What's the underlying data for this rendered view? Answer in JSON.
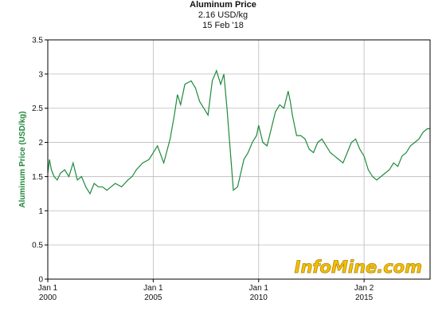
{
  "header": {
    "title": "Aluminum Price",
    "price_line": "2.16 USD/kg",
    "date_line": "15 Feb '18"
  },
  "brand": {
    "watermark": "InfoMine.com"
  },
  "colors": {
    "series": "#1f8a3c",
    "grid": "#bbbbbb",
    "axis": "#000000",
    "watermark_fill": "#f2c200",
    "watermark_stroke": "#b8860b",
    "ylabel": "#1f8a3c"
  },
  "chart_data": {
    "type": "line",
    "title": "Aluminum Price",
    "subtitle": [
      "2.16 USD/kg",
      "15 Feb '18"
    ],
    "xlabel": "",
    "ylabel": "Aluminum Price (USD/kg)",
    "xlim": [
      2000.0,
      2018.13
    ],
    "ylim": [
      0,
      3.5
    ],
    "grid": true,
    "legend": "none",
    "x_ticks": [
      {
        "x": 2000,
        "line1": "Jan 1",
        "line2": "2000"
      },
      {
        "x": 2005,
        "line1": "Jan 1",
        "line2": "2005"
      },
      {
        "x": 2010,
        "line1": "Jan 1",
        "line2": "2010"
      },
      {
        "x": 2015,
        "line1": "Jan 2",
        "line2": "2015"
      }
    ],
    "y_ticks": [
      "0",
      "0.5",
      "1",
      "1.5",
      "2",
      "2.5",
      "3",
      "3.5"
    ],
    "series": [
      {
        "x": [
          2000.0,
          2000.08,
          2000.17,
          2000.3,
          2000.45,
          2000.6,
          2000.8,
          2001.0,
          2001.2,
          2001.4,
          2001.6,
          2001.8,
          2002.0,
          2002.2,
          2002.4,
          2002.6,
          2002.8,
          2003.0,
          2003.2,
          2003.5,
          2003.8,
          2004.0,
          2004.2,
          2004.5,
          2004.8,
          2005.0,
          2005.2,
          2005.5,
          2005.8,
          2006.0,
          2006.15,
          2006.3,
          2006.5,
          2006.8,
          2007.0,
          2007.2,
          2007.4,
          2007.6,
          2007.8,
          2008.0,
          2008.2,
          2008.35,
          2008.5,
          2008.65,
          2008.8,
          2009.0,
          2009.15,
          2009.3,
          2009.5,
          2009.7,
          2009.9,
          2010.0,
          2010.2,
          2010.4,
          2010.6,
          2010.8,
          2011.0,
          2011.2,
          2011.4,
          2011.5,
          2011.6,
          2011.8,
          2012.0,
          2012.2,
          2012.4,
          2012.6,
          2012.8,
          2013.0,
          2013.2,
          2013.4,
          2013.6,
          2013.8,
          2014.0,
          2014.2,
          2014.4,
          2014.6,
          2014.8,
          2015.0,
          2015.2,
          2015.4,
          2015.6,
          2015.8,
          2016.0,
          2016.2,
          2016.4,
          2016.6,
          2016.8,
          2017.0,
          2017.2,
          2017.4,
          2017.6,
          2017.8,
          2018.0,
          2018.13
        ],
        "y": [
          1.55,
          1.75,
          1.6,
          1.5,
          1.45,
          1.55,
          1.6,
          1.5,
          1.7,
          1.45,
          1.5,
          1.35,
          1.25,
          1.4,
          1.35,
          1.35,
          1.3,
          1.35,
          1.4,
          1.35,
          1.45,
          1.5,
          1.6,
          1.7,
          1.75,
          1.85,
          1.95,
          1.7,
          2.05,
          2.4,
          2.7,
          2.55,
          2.85,
          2.9,
          2.8,
          2.6,
          2.5,
          2.4,
          2.9,
          3.05,
          2.85,
          3.0,
          2.5,
          1.9,
          1.3,
          1.35,
          1.55,
          1.75,
          1.85,
          2.0,
          2.1,
          2.25,
          2.0,
          1.95,
          2.2,
          2.45,
          2.55,
          2.5,
          2.75,
          2.6,
          2.4,
          2.1,
          2.1,
          2.05,
          1.9,
          1.85,
          2.0,
          2.05,
          1.95,
          1.85,
          1.8,
          1.75,
          1.7,
          1.85,
          2.0,
          2.05,
          1.9,
          1.8,
          1.6,
          1.5,
          1.45,
          1.5,
          1.55,
          1.6,
          1.7,
          1.65,
          1.8,
          1.85,
          1.95,
          2.0,
          2.05,
          2.15,
          2.2,
          2.2
        ]
      }
    ]
  }
}
